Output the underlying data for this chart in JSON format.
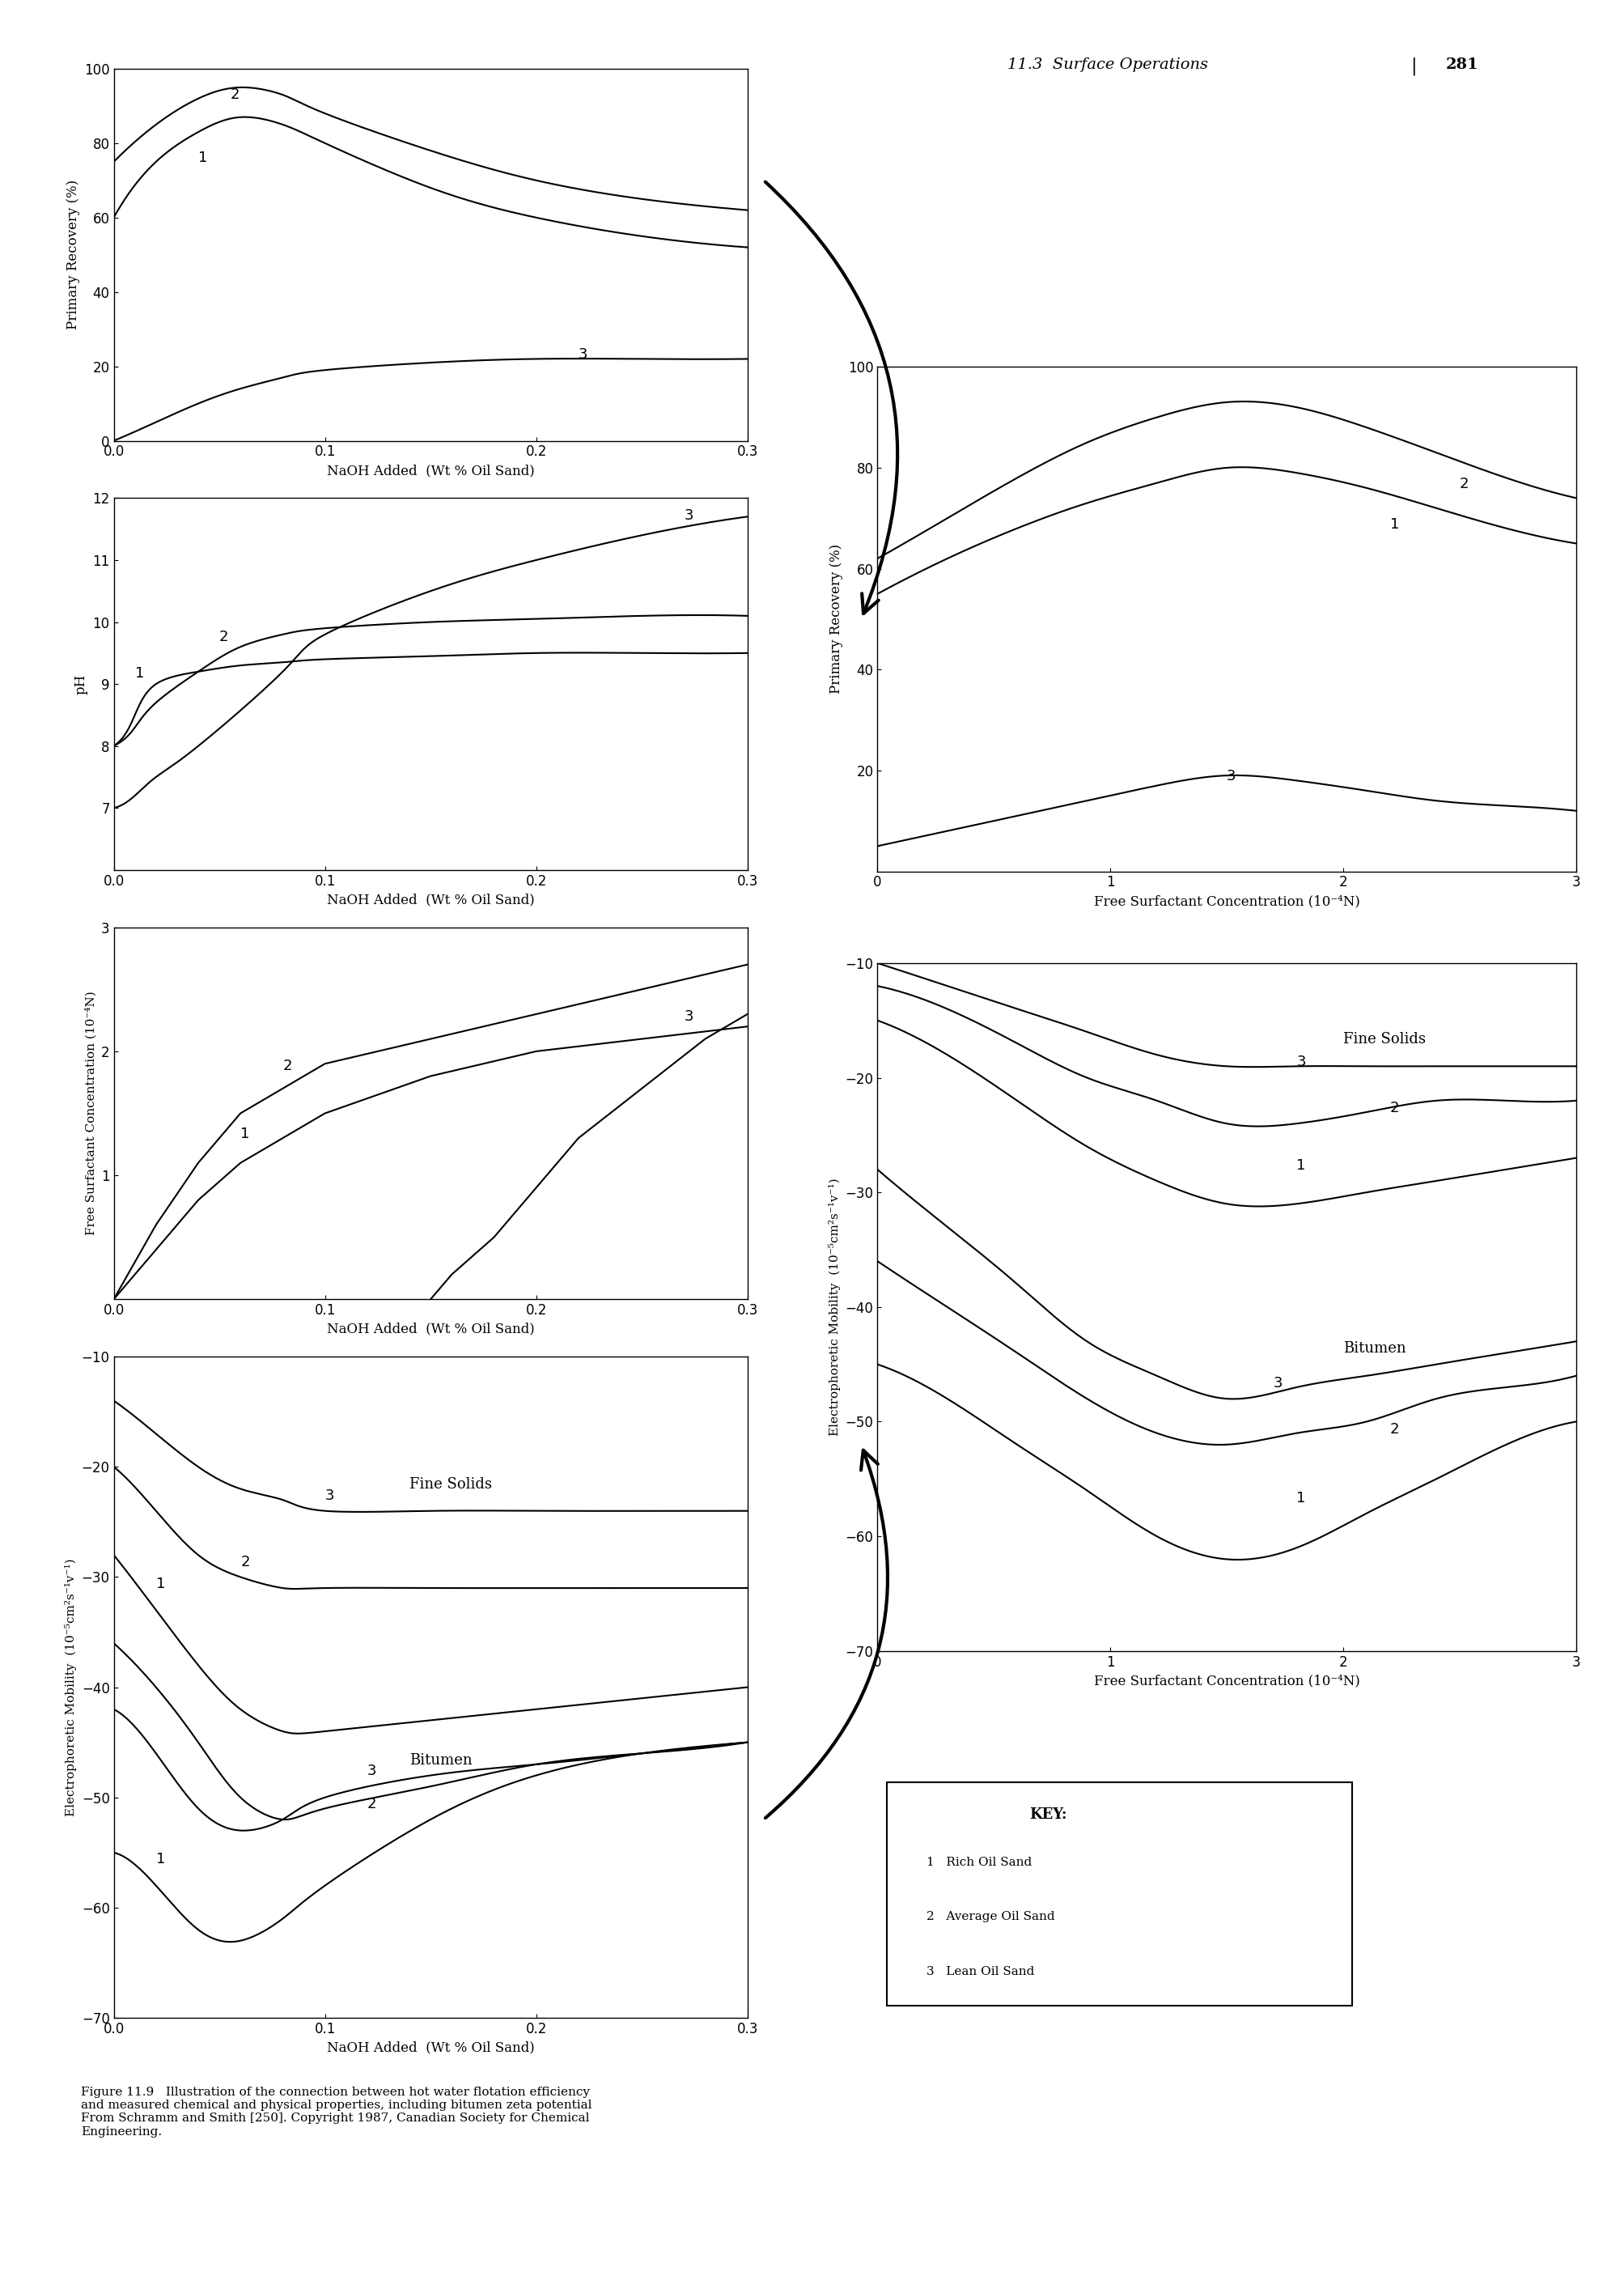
{
  "page_header": "11.3  Surface Operations",
  "page_number": "281",
  "caption": "Figure 11.9   Illustration of the connection between hot water flotation efficiency\nand measured chemical and physical properties, including bitumen zeta potential\nFrom Schramm and Smith [250]. Copyright 1987, Canadian Society for Chemical\nEngineering.",
  "key_labels": [
    "1   Rich Oil Sand",
    "2   Average Oil Sand",
    "3   Lean Oil Sand"
  ],
  "plots": {
    "plot1": {
      "title": "",
      "xlabel": "NaOH Added  (Wt % Oil Sand)",
      "ylabel": "Primary Recovery (%)",
      "xlim": [
        0,
        0.3
      ],
      "ylim": [
        0,
        100
      ],
      "xticks": [
        0,
        0.1,
        0.2,
        0.3
      ],
      "yticks": [
        0,
        20,
        40,
        60,
        80,
        100
      ],
      "curves": {
        "1": {
          "x": [
            0.0,
            0.02,
            0.04,
            0.06,
            0.08,
            0.1,
            0.15,
            0.2,
            0.25,
            0.3
          ],
          "y": [
            60,
            75,
            83,
            87,
            85,
            80,
            68,
            60,
            55,
            52
          ]
        },
        "2": {
          "x": [
            0.0,
            0.02,
            0.04,
            0.06,
            0.08,
            0.1,
            0.15,
            0.2,
            0.25,
            0.3
          ],
          "y": [
            75,
            85,
            92,
            95,
            93,
            88,
            78,
            70,
            65,
            62
          ]
        },
        "3": {
          "x": [
            0.0,
            0.02,
            0.04,
            0.06,
            0.08,
            0.1,
            0.15,
            0.2,
            0.25,
            0.3
          ],
          "y": [
            0,
            5,
            10,
            14,
            17,
            19,
            21,
            22,
            22,
            22
          ]
        }
      }
    },
    "plot2": {
      "title": "",
      "xlabel": "NaOH Added  (Wt % Oil Sand)",
      "ylabel": "pH",
      "xlim": [
        0,
        0.3
      ],
      "ylim": [
        6,
        12
      ],
      "xticks": [
        0,
        0.1,
        0.2,
        0.3
      ],
      "yticks": [
        7,
        8,
        9,
        10,
        11,
        12
      ],
      "curves": {
        "1": {
          "x": [
            0.0,
            0.01,
            0.02,
            0.04,
            0.06,
            0.08,
            0.1,
            0.15,
            0.2,
            0.25,
            0.3
          ],
          "y": [
            8.0,
            8.5,
            9.0,
            9.2,
            9.3,
            9.35,
            9.4,
            9.45,
            9.5,
            9.5,
            9.5
          ]
        },
        "2": {
          "x": [
            0.0,
            0.01,
            0.02,
            0.04,
            0.06,
            0.08,
            0.1,
            0.15,
            0.2,
            0.25,
            0.3
          ],
          "y": [
            8.0,
            8.3,
            8.7,
            9.2,
            9.6,
            9.8,
            9.9,
            10.0,
            10.05,
            10.1,
            10.1
          ]
        },
        "3": {
          "x": [
            0.0,
            0.01,
            0.02,
            0.04,
            0.08,
            0.1,
            0.15,
            0.2,
            0.25,
            0.3
          ],
          "y": [
            7.0,
            7.2,
            7.5,
            8.0,
            9.2,
            9.8,
            10.5,
            11.0,
            11.4,
            11.7
          ]
        }
      }
    },
    "plot3": {
      "title": "",
      "xlabel": "NaOH Added  (Wt % Oil Sand)",
      "ylabel": "Free Surfactant Concentration (10⁻⁴N)",
      "xlim": [
        0,
        0.3
      ],
      "ylim": [
        0,
        3
      ],
      "xticks": [
        0,
        0.1,
        0.2,
        0.3
      ],
      "yticks": [
        1,
        2,
        3
      ],
      "curves": {
        "1": {
          "x": [
            0.0,
            0.02,
            0.04,
            0.06,
            0.08,
            0.1,
            0.15,
            0.2,
            0.25,
            0.3
          ],
          "y": [
            0.0,
            0.4,
            0.8,
            1.1,
            1.3,
            1.5,
            1.8,
            2.0,
            2.1,
            2.2
          ]
        },
        "2": {
          "x": [
            0.0,
            0.02,
            0.04,
            0.06,
            0.08,
            0.1,
            0.15,
            0.2,
            0.25,
            0.3
          ],
          "y": [
            0.0,
            0.6,
            1.1,
            1.5,
            1.7,
            1.9,
            2.1,
            2.3,
            2.5,
            2.7
          ]
        },
        "3": {
          "x": [
            0.15,
            0.16,
            0.18,
            0.2,
            0.22,
            0.25,
            0.28,
            0.3
          ],
          "y": [
            0.0,
            0.2,
            0.5,
            0.9,
            1.3,
            1.7,
            2.1,
            2.3
          ]
        }
      }
    },
    "plot4": {
      "title": "",
      "xlabel": "NaOH Added  (Wt % Oil Sand)",
      "ylabel": "Electrophoretic Mobility  (10⁻⁵cm²s⁻¹v⁻¹)",
      "xlim": [
        0,
        0.3
      ],
      "ylim": [
        -70,
        -10
      ],
      "xticks": [
        0,
        0.1,
        0.2,
        0.3
      ],
      "yticks": [
        -70,
        -60,
        -50,
        -40,
        -30,
        -20,
        -10
      ],
      "bitumen_curves": {
        "1": {
          "x": [
            0.0,
            0.02,
            0.04,
            0.06,
            0.08,
            0.1,
            0.15,
            0.2,
            0.25,
            0.3
          ],
          "y": [
            -55,
            -58,
            -62,
            -63,
            -61,
            -58,
            -52,
            -48,
            -46,
            -45
          ]
        },
        "2": {
          "x": [
            0.0,
            0.02,
            0.04,
            0.06,
            0.08,
            0.1,
            0.15,
            0.2,
            0.25,
            0.3
          ],
          "y": [
            -42,
            -46,
            -51,
            -53,
            -52,
            -50,
            -48,
            -47,
            -46,
            -45
          ]
        },
        "3": {
          "x": [
            0.0,
            0.02,
            0.04,
            0.06,
            0.08,
            0.1,
            0.15,
            0.2,
            0.25,
            0.3
          ],
          "y": [
            -36,
            -40,
            -45,
            -50,
            -52,
            -51,
            -49,
            -47,
            -46,
            -45
          ]
        }
      },
      "fine_solids_curves": {
        "1": {
          "x": [
            0.0,
            0.02,
            0.04,
            0.06,
            0.08,
            0.1,
            0.15,
            0.2,
            0.25,
            0.3
          ],
          "y": [
            -28,
            -33,
            -38,
            -42,
            -44,
            -44,
            -43,
            -42,
            -41,
            -40
          ]
        },
        "2": {
          "x": [
            0.0,
            0.02,
            0.04,
            0.06,
            0.08,
            0.1,
            0.15,
            0.2,
            0.25,
            0.3
          ],
          "y": [
            -20,
            -24,
            -28,
            -30,
            -31,
            -31,
            -31,
            -31,
            -31,
            -31
          ]
        },
        "3": {
          "x": [
            0.0,
            0.02,
            0.04,
            0.06,
            0.08,
            0.1,
            0.15,
            0.2,
            0.25,
            0.3
          ],
          "y": [
            -14,
            -17,
            -20,
            -22,
            -23,
            -24,
            -24,
            -24,
            -24,
            -24
          ]
        }
      }
    },
    "plot5": {
      "title": "",
      "xlabel": "Free Surfactant Concentration (10⁻⁴N)",
      "ylabel": "Primary Recovery (%)",
      "xlim": [
        0,
        3
      ],
      "ylim": [
        0,
        100
      ],
      "xticks": [
        0,
        1,
        2,
        3
      ],
      "yticks": [
        20,
        40,
        60,
        80,
        100
      ],
      "curves": {
        "1": {
          "x": [
            0.0,
            0.3,
            0.6,
            0.9,
            1.2,
            1.5,
            1.8,
            2.1,
            2.4,
            2.7,
            3.0
          ],
          "y": [
            55,
            62,
            68,
            73,
            77,
            80,
            79,
            76,
            72,
            68,
            65
          ]
        },
        "2": {
          "x": [
            0.0,
            0.3,
            0.6,
            0.9,
            1.2,
            1.5,
            1.8,
            2.1,
            2.4,
            2.7,
            3.0
          ],
          "y": [
            62,
            70,
            78,
            85,
            90,
            93,
            92,
            88,
            83,
            78,
            74
          ]
        },
        "3": {
          "x": [
            0.0,
            0.3,
            0.6,
            0.9,
            1.2,
            1.5,
            1.8,
            2.1,
            2.4,
            2.7,
            3.0
          ],
          "y": [
            5,
            8,
            11,
            14,
            17,
            19,
            18,
            16,
            14,
            13,
            12
          ]
        }
      }
    },
    "plot6": {
      "title": "",
      "xlabel": "Free Surfactant Concentration (10⁻⁴N)",
      "ylabel": "Electrophoretic Mobility  (10⁻⁵cm²s⁻¹v⁻¹)",
      "xlim": [
        0,
        3
      ],
      "ylim": [
        -70,
        -10
      ],
      "xticks": [
        0,
        1,
        2,
        3
      ],
      "yticks": [
        -70,
        -60,
        -50,
        -40,
        -30,
        -20,
        -10
      ],
      "bitumen_curves": {
        "1": {
          "x": [
            0.0,
            0.3,
            0.6,
            0.9,
            1.2,
            1.5,
            1.8,
            2.1,
            2.4,
            2.7,
            3.0
          ],
          "y": [
            -45,
            -48,
            -52,
            -56,
            -60,
            -62,
            -61,
            -58,
            -55,
            -52,
            -50
          ]
        },
        "2": {
          "x": [
            0.0,
            0.3,
            0.6,
            0.9,
            1.2,
            1.5,
            1.8,
            2.1,
            2.4,
            2.7,
            3.0
          ],
          "y": [
            -36,
            -40,
            -44,
            -48,
            -51,
            -52,
            -51,
            -50,
            -48,
            -47,
            -46
          ]
        },
        "3": {
          "x": [
            0.0,
            0.3,
            0.6,
            0.9,
            1.2,
            1.5,
            1.8,
            2.1,
            2.4,
            2.7,
            3.0
          ],
          "y": [
            -28,
            -33,
            -38,
            -43,
            -46,
            -48,
            -47,
            -46,
            -45,
            -44,
            -43
          ]
        }
      },
      "fine_solids_curves": {
        "1": {
          "x": [
            0.0,
            0.3,
            0.6,
            0.9,
            1.2,
            1.5,
            1.8,
            2.1,
            2.4,
            2.7,
            3.0
          ],
          "y": [
            -15,
            -18,
            -22,
            -26,
            -29,
            -31,
            -31,
            -30,
            -29,
            -28,
            -27
          ]
        },
        "2": {
          "x": [
            0.0,
            0.3,
            0.6,
            0.9,
            1.2,
            1.5,
            1.8,
            2.1,
            2.4,
            2.7,
            3.0
          ],
          "y": [
            -12,
            -14,
            -17,
            -20,
            -22,
            -24,
            -24,
            -23,
            -22,
            -22,
            -22
          ]
        },
        "3": {
          "x": [
            0.0,
            0.3,
            0.6,
            0.9,
            1.2,
            1.5,
            1.8,
            2.1,
            2.4,
            2.7,
            3.0
          ],
          "y": [
            -10,
            -12,
            -14,
            -16,
            -18,
            -19,
            -19,
            -19,
            -19,
            -19,
            -19
          ]
        }
      }
    }
  }
}
